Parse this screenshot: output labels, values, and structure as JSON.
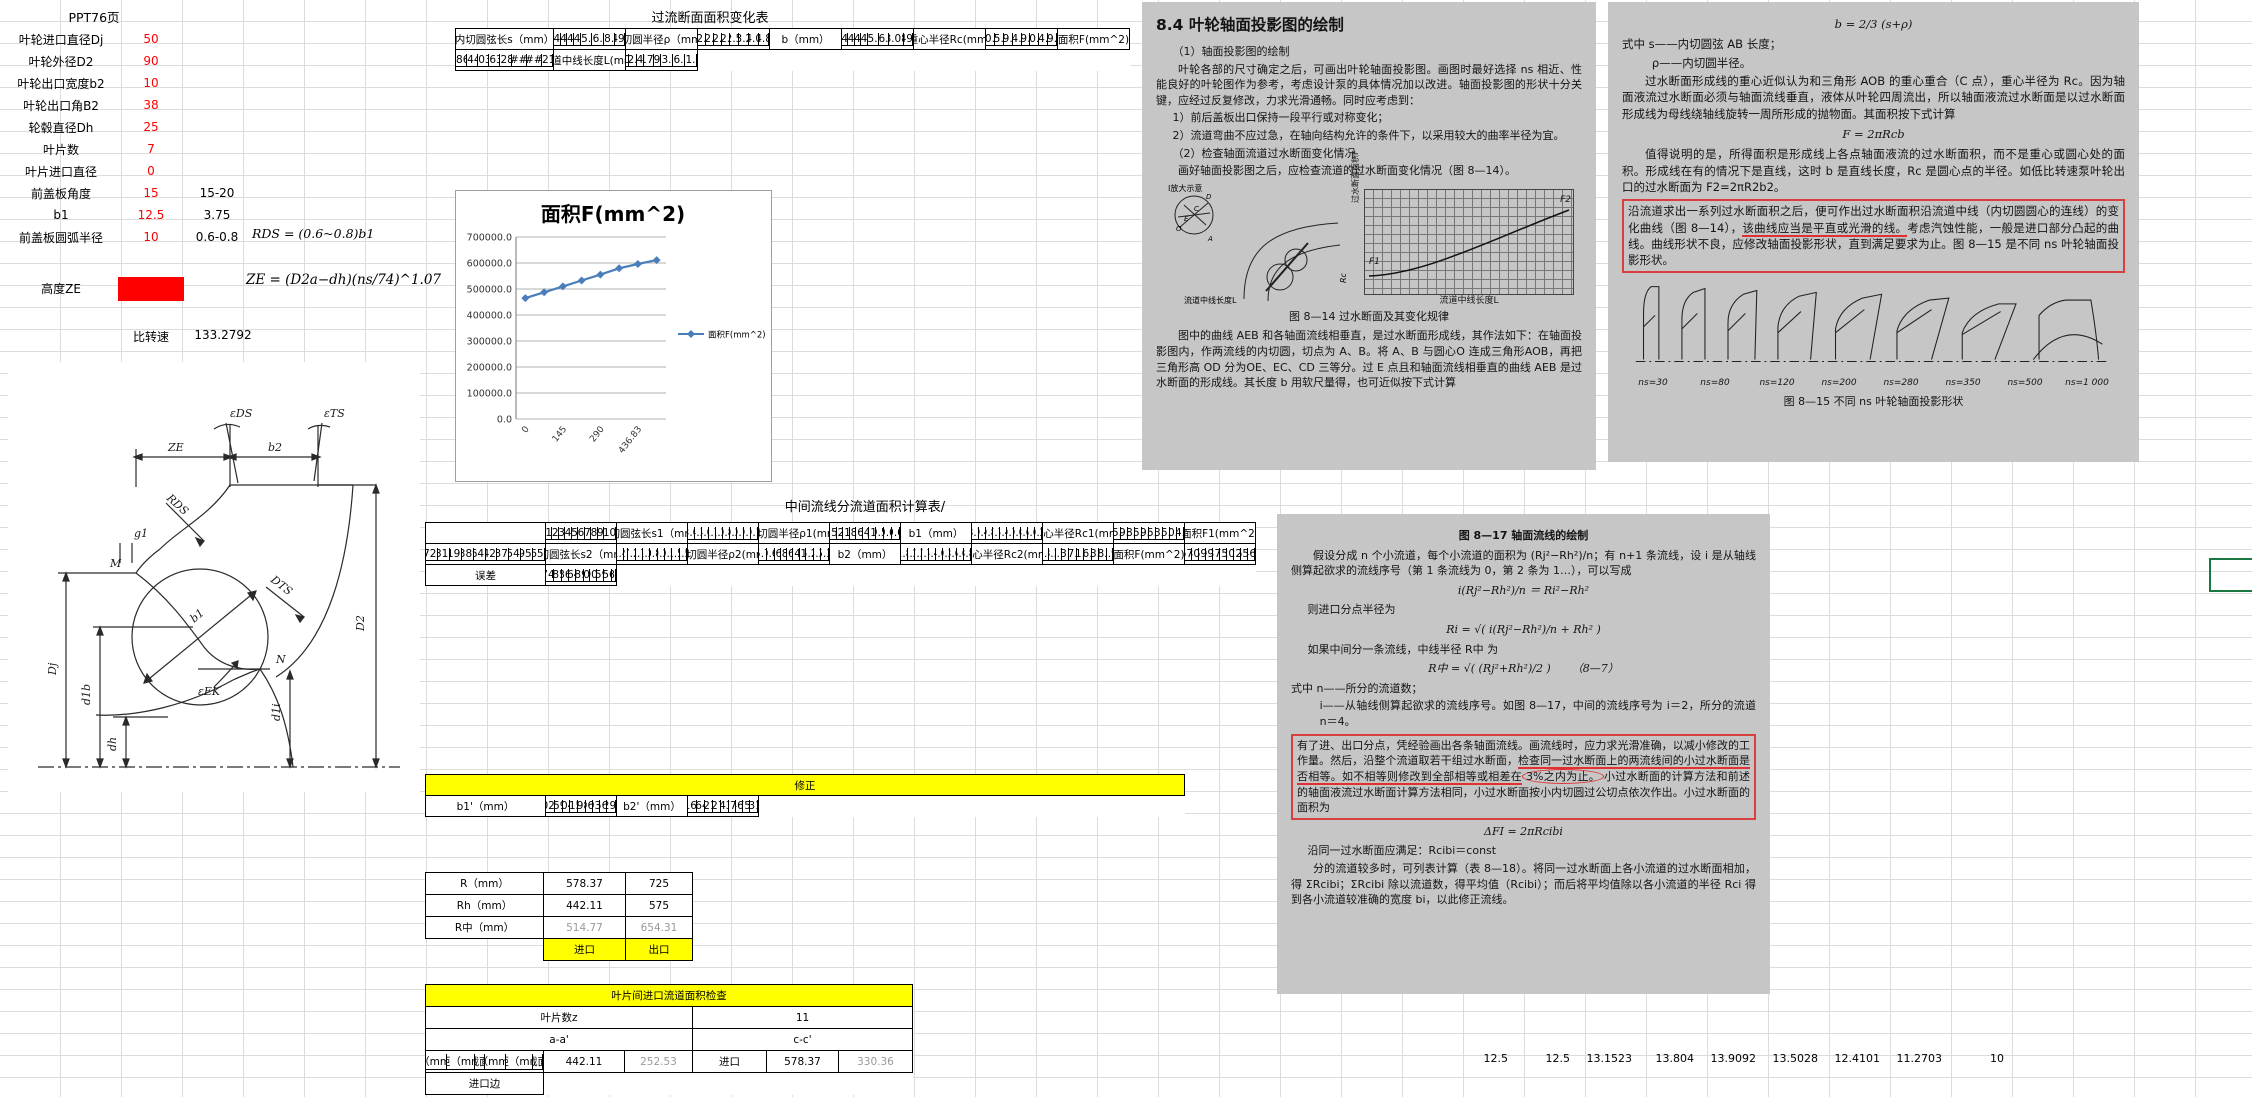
{
  "sheet": {
    "param": {
      "title": "PPT76页",
      "rows": [
        {
          "label": "叶轮进口直径Dj",
          "value": "50",
          "extra": ""
        },
        {
          "label": "叶轮外径D2",
          "value": "90",
          "extra": ""
        },
        {
          "label": "叶轮出口宽度b2",
          "value": "10",
          "extra": ""
        },
        {
          "label": "叶轮出口角B2",
          "value": "38",
          "extra": ""
        },
        {
          "label": "轮毂直径Dh",
          "value": "25",
          "extra": ""
        },
        {
          "label": "叶片数",
          "value": "7",
          "extra": ""
        },
        {
          "label": "叶片进口直径",
          "value": "0",
          "extra": ""
        },
        {
          "label": "前盖板角度",
          "value": "15",
          "extra": "15-20"
        },
        {
          "label": "b1",
          "value": "12.5",
          "extra": "3.75"
        },
        {
          "label": "前盖板圆弧半径",
          "value": "10",
          "extra": "0.6-0.8"
        }
      ],
      "formula_rds": "RDS = (0.6~0.8)b1",
      "height_label": "高度ZE",
      "formula_ze": "ZE = (D2a−dh)(ns/74)^1.07",
      "ns_label": "比转速",
      "ns_value": "133.2792"
    },
    "area": {
      "title": "过流断面面积变化表",
      "rows": [
        {
          "label": "内切圆弦长s（mm）",
          "values": [
            "145",
            "145",
            "145",
            "145",
            "145.04",
            "146.52",
            "148.08",
            "149.7"
          ]
        },
        {
          "label": "内切圆半径ρ（mm）",
          "values": [
            "72.5",
            "72.5",
            "72.5",
            "72.5",
            "72.52",
            "73.26",
            "74.05",
            "74.85"
          ]
        },
        {
          "label": "b（mm）",
          "values": [
            "145",
            "145",
            "145",
            "145",
            "145.04",
            "146.52",
            "148.0867",
            "149.7"
          ]
        },
        {
          "label": "重心半径Rc(mm)",
          "values": [
            "510.24",
            "535.03",
            "559.83",
            "584.63",
            "609.32",
            "630.52",
            "644.11",
            "649.82"
          ]
        },
        {
          "label": "面积F(mm^2)",
          "values": [
            "464860.2",
            "487445.4",
            "510039.8",
            "532634.1",
            "555281.4",
            "########",
            "########",
            "611216.0"
          ]
        },
        {
          "label": "流道中线长度L(mm)",
          "values": [
            "0",
            "72.5",
            "145",
            "217.5",
            "290",
            "363.34",
            "436.83",
            "511.75"
          ]
        }
      ]
    },
    "mid": {
      "title": "中间流线分流道面积计算表/",
      "headers": [
        "1",
        "2",
        "3",
        "4",
        "5",
        "6",
        "7",
        "8",
        "9",
        "10"
      ],
      "rows": [
        {
          "label": "内切圆弦长s1（mm）",
          "values": [
            "13.05",
            "14.32",
            "14.04",
            "11.75",
            "11.22",
            "10.89",
            "10.22",
            "79.13",
            "79.14",
            "79.14"
          ]
        },
        {
          "label": "内切圆半径ρ1(mm)",
          "values": [
            "6.53",
            "7.22",
            "7.11",
            "5.89",
            "5.62",
            "5.45",
            "5.11",
            "39.57",
            "39.66",
            "39.66"
          ]
        },
        {
          "label": "b1（mm）",
          "values": [
            "28.14",
            "29.47",
            "29.87",
            "27.73",
            "25.42",
            "29.76",
            "29.04",
            "23.69",
            "26.68",
            "30.22"
          ]
        },
        {
          "label": "重心半径Rc1(mm)",
          "values": [
            "105.93",
            "109.73",
            "118.28",
            "145.72",
            "179.36",
            "125.28",
            "133.58",
            "205.18",
            "160.79",
            "114.05"
          ]
        },
        {
          "label": "面积F1(mm^2)",
          "values": [
            "18729.4",
            "20318.2",
            "22198.6",
            "25389.2",
            "28647.1",
            "23425.8",
            "24373.5",
            "30540.8",
            "26954.1",
            "21655.6"
          ]
        },
        {
          "label": "内切圆弦长s2（mm）",
          "values": [
            "31.45",
            "21",
            "17.22",
            "11.71",
            "11.21",
            "10.88",
            "10.22",
            "70.55",
            "71.55",
            "71.55"
          ]
        },
        {
          "label": "内切圆半径ρ2(mm)",
          "values": [
            "15.72",
            "10.61",
            "8.69",
            "5.88",
            "5.61",
            "5.45",
            "5.11",
            "35.28",
            "35.34",
            "35.34"
          ]
        },
        {
          "label": "b2（mm）",
          "values": [
            "41.86",
            "41.25",
            "37.33",
            "27.71",
            "25.42",
            "34.01",
            "30.36",
            "23.63",
            "26.68",
            "38.86"
          ]
        },
        {
          "label": "重心半径Rc2(mm)",
          "values": [
            "71.02",
            "78.34",
            "96.76",
            "143.57",
            "177.64",
            "111.17",
            "126.89",
            "203.57",
            "158.98",
            "87.92"
          ]
        },
        {
          "label": "面积F(mm^2)",
          "values": [
            "18679.3",
            "20304.3",
            "22695.2",
            "24996.6",
            "28372.4",
            "23756.0",
            "24205.2",
            "30224.4",
            "26650.7",
            "21466.9"
          ]
        },
        {
          "label": "误差",
          "values": [
            "0.26747223",
            "0.0685923",
            "-2.236815",
            "1.5464922",
            "0.9589652",
            "-1.40972",
            "0.690427",
            "1.0359609",
            "1.1256919",
            "0.871"
          ]
        }
      ],
      "fix": {
        "title": "修正",
        "rows": [
          {
            "label": "b1'（mm）",
            "values": [
              "28.1023667",
              "29.459893",
              "30.204068",
              "27.515579",
              "25.298116",
              "29.96977",
              "28.93975",
              "23.56729",
              "26.5298327"
            ]
          },
          {
            "label": "b2'（mm）",
            "values": [
              "41.9161321",
              "41.264157",
              "36.921633",
              "27.927632",
              "25.543065",
              "33.77361",
              "30.46554",
              "23.75368",
              "26.831877"
            ]
          }
        ]
      }
    },
    "rtab": {
      "rows": [
        {
          "label": "R（mm）",
          "v1": "578.37",
          "v2": "725"
        },
        {
          "label": "Rh（mm）",
          "v1": "442.11",
          "v2": "575"
        },
        {
          "label": "R中（mm）",
          "v1": "514.77",
          "v2": "654.31"
        }
      ],
      "foot_in": "进口",
      "foot_out": "出口"
    },
    "check": {
      "title": "叶片间进口流道面积检查",
      "blade_label": "叶片数z",
      "blade_value": "11",
      "sec1": "a-a'",
      "sec2": "c-c'",
      "headers": [
        "R（mm）",
        "节距（mm）",
        "截面",
        "R（mm）",
        "节距（mm）",
        "截面"
      ],
      "row": [
        "442.11",
        "252.53",
        "进口",
        "578.37",
        "330.36",
        "进口边"
      ]
    },
    "bottom_values": [
      "12.5",
      "12.5",
      "13.1523",
      "13.804",
      "13.9092",
      "13.5028",
      "12.4101",
      "11.2703",
      "10"
    ]
  },
  "chart_data": {
    "type": "line",
    "title": "面积F(mm^2)",
    "series": [
      {
        "name": "面积F(mm^2)",
        "values": [
          464860.2,
          487445.4,
          510039.8,
          532634.1,
          555281.4,
          579800,
          596200,
          611216
        ]
      }
    ],
    "x": [
      "0",
      "72.5",
      "145",
      "217.5",
      "290",
      "363.34",
      "436.83",
      "511.75"
    ],
    "x_ticks_shown": [
      "0",
      "145",
      "290",
      "436.83"
    ],
    "ylim": [
      0,
      700000
    ],
    "ytick_step": 100000,
    "grid": true,
    "legend_position": "right",
    "marker": "diamond",
    "color": "#4a7ebb"
  },
  "diagram": {
    "labels": {
      "ze": "ZE",
      "b2": "b2",
      "eds": "εDS",
      "ets": "εTS",
      "rds": "RDS",
      "g1": "g1",
      "m": "M",
      "b1": "b1",
      "dts": "DTS",
      "d2": "D2",
      "dj": "Dj",
      "d1b": "d1b",
      "dh": "dh",
      "eek": "εEK",
      "d1i": "d1i",
      "n": "N"
    }
  },
  "page1": {
    "heading": "8.4  叶轮轴面投影图的绘制",
    "p1": "（1）轴面投影图的绘制",
    "p2": "叶轮各部的尺寸确定之后，可画出叶轮轴面投影图。画图时最好选择 ns 相近、性能良好的叶轮图作为参考，考虑设计泵的具体情况加以改进。轴面投影图的形状十分关键，应经过反复修改，力求光滑通畅。同时应考虑到：",
    "p3": "1）前后盖板出口保持一段平行或对称变化；",
    "p4": "2）流道弯曲不应过急，在轴向结构允许的条件下，以采用较大的曲率半径为宜。",
    "p5": "（2）检查轴面流道过水断面变化情况",
    "p6": "画好轴面投影图之后，应检查流道的过水断面变化情况（图 8—14）。",
    "fig": {
      "zoom_label": "Ⅰ放大示意",
      "l_d": "D",
      "l_c": "C",
      "l_e": "E",
      "l_o": "O",
      "l_a": "A",
      "left_label": "流道中线长度L",
      "ylabel": "过水断面面积F",
      "xlabel": "流道中线长度L",
      "f1": "F1",
      "f2": "F2",
      "rc": "Rc"
    },
    "caption": "图 8—14  过水断面及其变化规律",
    "p7": "图中的曲线 AEB 和各轴面流线相垂直，是过水断面形成线，其作法如下：在轴面投影图内，作两流线的内切圆，切点为 A、B。将 A、B 与圆心O 连成三角形AOB，再把三角形高 OD 分为OE、EC、CD 三等分。过 E 点且和轴面流线相垂直的曲线 AEB 是过水断面的形成线。其长度 b 用软尺量得，也可近似按下式计算"
  },
  "page2": {
    "f1": "b = 2/3 (s+ρ)",
    "p1": "式中  s——内切圆弦 AB 长度；",
    "p2": "ρ——内切圆半径。",
    "p3": "过水断面形成线的重心近似认为和三角形 AOB 的重心重合（C 点），重心半径为 Rc。因为轴面液流过水断面必须与轴面流线垂直，液体从叶轮四周流出，所以轴面液流过水断面是以过水断面形成线为母线绕轴线旋转一周所形成的抛物面。其面积按下式计算",
    "f2": "F = 2πRcb",
    "p4": "值得说明的是，所得面积是形成线上各点轴面液流的过水断面积，而不是重心或圆心处的面积。形成线在有的情况下是直线，这时 b 是直线长度，Rc 是圆心点的半径。如低比转速泵叶轮出口的过水断面为 F2=2πR2b2。",
    "red_a": "沿流道求出一系列过水断面积之后，便可作出过水断面积沿流道中线（内切圆圆心的连线）的变化曲线（图 8—14），",
    "red_b": "该曲线应当是平直或光滑的线。",
    "red_c": "考虑汽蚀性能，一般是进口部分凸起的曲线。曲线形状不良，应修改轴面投影形状，直到满足要求为止。图 8—15 是不同 ns 叶轮轴面投影形状。",
    "fig_labels": [
      "ns=30",
      "ns=80",
      "ns=120",
      "ns=200",
      "ns=280",
      "ns=350",
      "ns=500",
      "ns=1 000"
    ],
    "caption": "图 8—15  不同 ns 叶轮轴面投影形状"
  },
  "page3": {
    "caption_top": "图 8—17  轴面流线的绘制",
    "p1": "假设分成 n 个小流道，每个小流道的面积为 (Rj²−Rh²)/n；有 n+1 条流线，设 i 是从轴线侧算起欲求的流线序号（第 1 条流线为 0，第 2 条为 1…），可以写成",
    "f1": "i(Rj²−Rh²)/n ＝ Ri²−Rh²",
    "p2": "则进口分点半径为",
    "f2": "Ri = √( i(Rj²−Rh²)/n + Rh² )",
    "p3": "如果中间分一条流线，中线半径 R中 为",
    "f3": "R中 = √( (Rj²+Rh²)/2 )",
    "f3_num": "（8—7）",
    "p4": "式中  n——所分的流道数；",
    "p5": "i——从轴线侧算起欲求的流线序号。如图 8—17，中间的流线序号为 i＝2，所分的流道 n＝4。",
    "red_a": "有了进、出口分点，凭经验画出各条轴面流线。画流线时，应力求光滑准确，以减小修改的工作量。然后，沿整个流道取若干组过水断面，",
    "red_b": "检查同一过水断面上的两流线间的小过水断面是否相等。如不相等则修改到全部相等或相差在",
    "red_oval": "3%之内为止。",
    "red_c": "小过水断面的计算方法和前述的轴面液流过水断面计算方法相同，小过水断面按小内切圆过公切点依次作出。小过水断面的面积为",
    "f4": "ΔFI = 2πRcibi",
    "p6": "沿同一过水断面应满足：Rcibi＝const",
    "p7": "分的流道较多时，可列表计算（表 8—18）。将同一过水断面上各小流道的过水断面相加，得 ΣRcibi；ΣRcibi 除以流道数，得平均值（Rcibi）；而后将平均值除以各小流道的半径 Rci 得到各小流道较准确的宽度 bi，以此修正流线。"
  }
}
